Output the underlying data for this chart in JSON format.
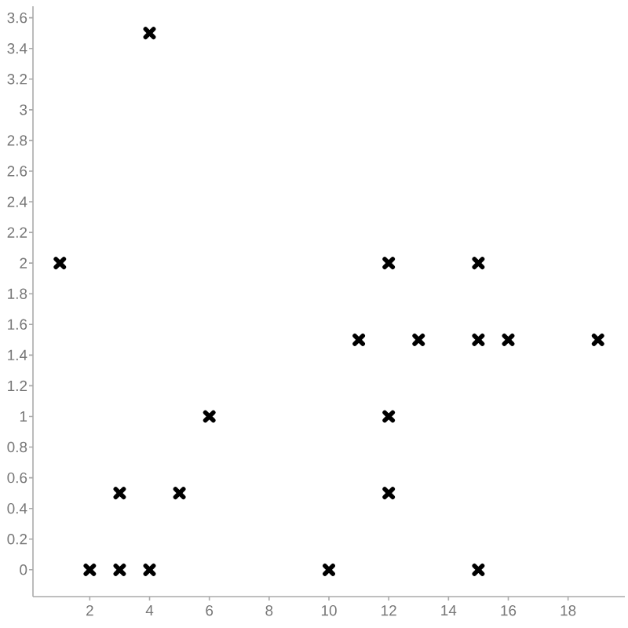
{
  "chart_data": {
    "type": "scatter",
    "x": [
      1,
      2,
      3,
      3,
      4,
      4,
      5,
      6,
      10,
      11,
      12,
      12,
      12,
      13,
      15,
      15,
      15,
      16,
      19
    ],
    "values": [
      2,
      0,
      0,
      0.5,
      0,
      3.5,
      0.5,
      1,
      0,
      1.5,
      2,
      1,
      0.5,
      1.5,
      2,
      1.5,
      0,
      1.5,
      1.5
    ],
    "color": "#000000",
    "marker": "cross",
    "xlim": [
      0.1,
      19.9
    ],
    "ylim": [
      -0.175,
      3.675
    ],
    "xticks": [
      2,
      4,
      6,
      8,
      10,
      12,
      14,
      16,
      18
    ],
    "yticks": [
      0,
      0.2,
      0.4,
      0.6,
      0.8,
      1,
      1.2,
      1.4,
      1.6,
      1.8,
      2,
      2.2,
      2.4,
      2.6,
      2.8,
      3,
      3.2,
      3.4,
      3.6
    ]
  }
}
